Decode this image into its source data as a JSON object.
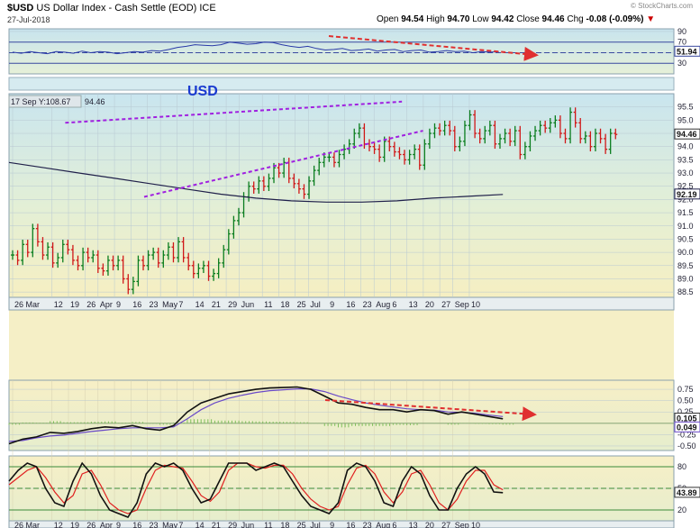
{
  "header": {
    "symbol": "$USD",
    "name": "US Dollar Index - Cash Settle (EOD)",
    "exchange": "ICE",
    "date": "27-Jul-2018",
    "watermark": "© StockCharts.com",
    "open_label": "Open",
    "open": "94.54",
    "high_label": "High",
    "high": "94.70",
    "low_label": "Low",
    "low": "94.42",
    "close_label": "Close",
    "close": "94.46",
    "chg_label": "Chg",
    "chg": "-0.08 (-0.09%)",
    "chg_arrow": "▼"
  },
  "colors": {
    "up": "#0a7d1e",
    "down": "#d01818",
    "ma": "#20204a",
    "trend": "#a020e0",
    "arrow": "#e03030",
    "rsi": "#2a3aa8",
    "bg_top": "#cfe8f0",
    "bg_bottom": "#f5efc4",
    "grid": "#9ab0be"
  },
  "panels": {
    "price_label": "USD",
    "ma_readout": "17 Sep Y:108.67",
    "ma_readout_value": "94.46",
    "top_last_value": "51.94",
    "price_last_value": "94.46",
    "ma_last_value": "92.19",
    "macd_last_value": "0.105",
    "macd_second_value": "0.049",
    "stoch_last_value": "43.89"
  },
  "chart_data": {
    "type": "line",
    "x_tick_labels": [
      "26 Mar",
      "12",
      "19",
      "26",
      "Apr",
      "9",
      "16",
      "23",
      "May",
      "7",
      "14",
      "21",
      "29",
      "Jun",
      "11",
      "18",
      "25",
      "Jul",
      "9",
      "16",
      "23",
      "Aug",
      "6",
      "13",
      "20",
      "27",
      "Sep",
      "10"
    ],
    "rsi": {
      "yticks": [
        "90",
        "70",
        "50",
        "30"
      ],
      "ylim": [
        10,
        95
      ],
      "values": [
        51,
        49,
        52,
        50,
        48,
        52,
        51,
        49,
        53,
        50,
        52,
        51,
        48,
        50,
        52,
        51,
        54,
        53,
        56,
        60,
        62,
        65,
        64,
        63,
        65,
        70,
        68,
        66,
        67,
        70,
        69,
        65,
        62,
        60,
        62,
        58,
        55,
        56,
        58,
        54,
        55,
        57,
        53,
        55,
        56,
        52,
        54,
        55,
        51,
        52,
        54,
        52,
        53,
        50,
        52,
        51,
        52
      ]
    },
    "price": {
      "yticks": [
        "95.5",
        "95.0",
        "94.5",
        "94.0",
        "93.5",
        "93.0",
        "92.5",
        "92.0",
        "91.5",
        "91.0",
        "90.5",
        "90.0",
        "89.5",
        "89.0",
        "88.5"
      ],
      "ylim": [
        88.3,
        96.0
      ],
      "closes": [
        89.9,
        89.7,
        90.3,
        90.0,
        90.9,
        90.4,
        89.9,
        90.2,
        89.6,
        89.8,
        90.3,
        90.1,
        89.7,
        89.5,
        90.0,
        89.8,
        89.9,
        89.4,
        89.3,
        89.7,
        89.5,
        89.7,
        89.0,
        88.6,
        88.9,
        89.7,
        89.5,
        89.9,
        90.0,
        89.6,
        89.9,
        90.2,
        89.8,
        90.4,
        89.8,
        89.5,
        89.2,
        89.4,
        89.5,
        89.1,
        89.2,
        89.6,
        90.1,
        90.7,
        91.2,
        91.5,
        92.1,
        92.5,
        92.4,
        92.7,
        92.5,
        92.8,
        93.2,
        93.0,
        93.4,
        92.8,
        92.6,
        92.4,
        92.2,
        92.7,
        93.1,
        93.4,
        93.6,
        93.6,
        93.4,
        93.7,
        93.9,
        94.1,
        94.5,
        94.7,
        94.1,
        94.0,
        93.9,
        93.6,
        94.2,
        94.0,
        93.8,
        93.7,
        93.5,
        93.7,
        93.9,
        93.3,
        94.1,
        94.5,
        94.7,
        94.6,
        94.8,
        94.6,
        94.0,
        94.2,
        94.8,
        95.2,
        94.5,
        94.3,
        94.6,
        94.8,
        94.1,
        94.3,
        94.5,
        94.2,
        94.6,
        93.7,
        94.0,
        94.4,
        94.6,
        94.8,
        94.7,
        94.9,
        95.0,
        94.5,
        94.3,
        95.3,
        94.9,
        94.3,
        94.4,
        94.0,
        94.5,
        94.3,
        93.9,
        94.5,
        94.46
      ],
      "ma200": [
        93.4,
        93.2,
        93.0,
        92.8,
        92.6,
        92.4,
        92.2,
        92.05,
        91.95,
        91.9,
        91.9,
        91.95,
        92.05,
        92.12,
        92.19
      ]
    },
    "trendlines": [
      {
        "name": "upper",
        "from": [
          10,
          94.9
        ],
        "to": [
          74,
          95.7
        ]
      },
      {
        "name": "lower",
        "from": [
          25,
          92.1
        ],
        "to": [
          78,
          94.6
        ]
      }
    ],
    "macd": {
      "yticks": [
        "0.75",
        "0.50",
        "0.25",
        "0.00",
        "-0.25",
        "-0.50"
      ],
      "ylim": [
        -0.6,
        0.95
      ],
      "macd": [
        -0.45,
        -0.35,
        -0.3,
        -0.2,
        -0.22,
        -0.18,
        -0.12,
        -0.08,
        -0.1,
        -0.05,
        -0.12,
        -0.15,
        -0.05,
        0.25,
        0.45,
        0.55,
        0.65,
        0.7,
        0.75,
        0.78,
        0.79,
        0.8,
        0.75,
        0.6,
        0.45,
        0.42,
        0.35,
        0.3,
        0.3,
        0.25,
        0.3,
        0.28,
        0.2,
        0.25,
        0.2,
        0.15,
        0.1
      ],
      "signal": [
        -0.4,
        -0.38,
        -0.32,
        -0.28,
        -0.26,
        -0.22,
        -0.18,
        -0.15,
        -0.12,
        -0.1,
        -0.1,
        -0.1,
        -0.08,
        0.1,
        0.3,
        0.45,
        0.55,
        0.62,
        0.68,
        0.72,
        0.74,
        0.76,
        0.76,
        0.7,
        0.6,
        0.52,
        0.45,
        0.4,
        0.36,
        0.32,
        0.3,
        0.29,
        0.25,
        0.24,
        0.22,
        0.18,
        0.15
      ]
    },
    "stoch": {
      "yticks": [
        "80",
        "50",
        "20"
      ],
      "ylim": [
        5,
        95
      ],
      "k": [
        60,
        75,
        85,
        80,
        50,
        30,
        25,
        60,
        85,
        70,
        40,
        20,
        15,
        10,
        30,
        70,
        85,
        80,
        85,
        75,
        50,
        30,
        35,
        60,
        85,
        85,
        85,
        75,
        80,
        85,
        80,
        60,
        40,
        25,
        20,
        15,
        30,
        75,
        85,
        80,
        60,
        30,
        25,
        60,
        80,
        70,
        40,
        20,
        20,
        50,
        70,
        80,
        70,
        45,
        44
      ],
      "d": [
        55,
        65,
        75,
        80,
        65,
        45,
        30,
        40,
        70,
        75,
        55,
        30,
        20,
        15,
        20,
        50,
        75,
        82,
        80,
        78,
        60,
        40,
        32,
        45,
        75,
        85,
        85,
        80,
        78,
        82,
        82,
        70,
        50,
        35,
        25,
        20,
        25,
        55,
        78,
        82,
        70,
        45,
        30,
        45,
        70,
        75,
        55,
        30,
        20,
        35,
        60,
        75,
        75,
        55,
        48
      ]
    }
  }
}
